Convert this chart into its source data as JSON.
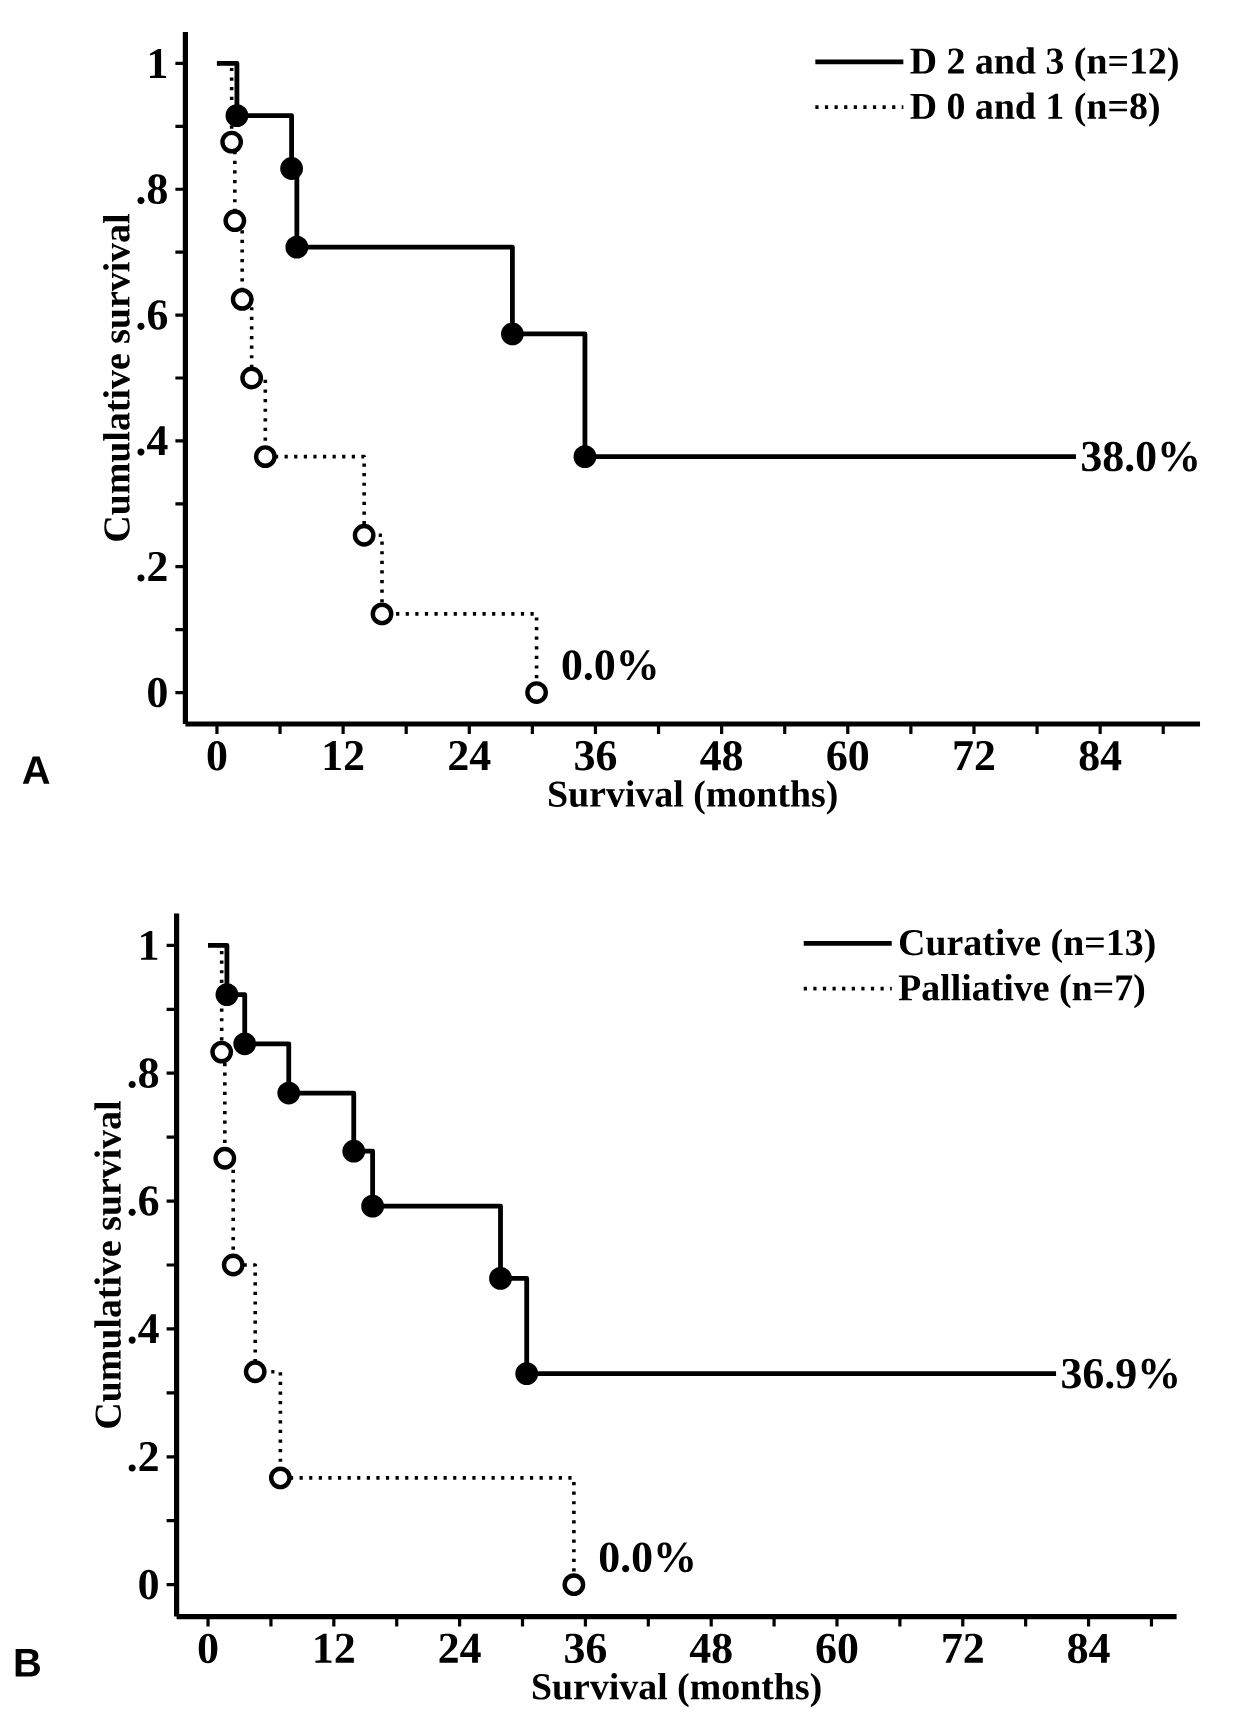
{
  "chart_data": [
    {
      "type": "step",
      "xlabel": "Survival (months)",
      "ylabel": "Cumulative survival",
      "series": [
        {
          "name": "D 2 and 3 (n=12)",
          "color": "#000000",
          "line_style": "solid",
          "marker": "circle",
          "x": [
            0,
            1.9,
            7.1,
            7.6,
            28.1,
            35,
            81.7
          ],
          "values": [
            1,
            0.917,
            0.833,
            0.708,
            0.57,
            0.375,
            0.375
          ]
        },
        {
          "name": "D 0 and 1 (n=8)",
          "color": "#000000",
          "line_style": "dotted",
          "marker": "circle",
          "x": [
            0,
            1.4,
            1.7,
            2.4,
            3.3,
            4.6,
            14.0,
            15.7,
            30.4
          ],
          "values": [
            1,
            0.875,
            0.75,
            0.625,
            0.5,
            0.375,
            0.25,
            0.125,
            0
          ]
        }
      ],
      "xlim": [
        -3,
        93.5
      ],
      "ylim": [
        -0.05,
        1.05
      ],
      "xticks": [
        0,
        {
          "value": 6,
          "label": null
        },
        12,
        {
          "value": 18,
          "label": null
        },
        24,
        {
          "value": 30,
          "label": null
        },
        36,
        {
          "value": 42,
          "label": null
        },
        48,
        {
          "value": 54,
          "label": null
        },
        60,
        {
          "value": 66,
          "label": null
        },
        72,
        {
          "value": 78,
          "label": null
        },
        84,
        {
          "value": 90,
          "label": null
        }
      ],
      "yticks": [
        0,
        {
          "value": 0.1,
          "label": null
        },
        {
          "value": 0.2,
          "label": ".2"
        },
        {
          "value": 0.3,
          "label": null
        },
        {
          "value": 0.4,
          "label": ".4"
        },
        {
          "value": 0.5,
          "label": null
        },
        {
          "value": 0.6,
          "label": ".6"
        },
        {
          "value": 0.7,
          "label": null
        },
        {
          "value": 0.8,
          "label": ".8"
        },
        {
          "value": 0.9,
          "label": null
        },
        1
      ],
      "legend": "top right",
      "grid": false,
      "annotations": [
        "A",
        {
          "text": "38.0%",
          "x": 81.7,
          "y": 0.375
        },
        {
          "text": "0.0%",
          "x": 30.4,
          "y": 0
        }
      ]
    },
    {
      "type": "step",
      "xlabel": "Survival (months)",
      "ylabel": "Cumulative survival",
      "series": [
        {
          "name": "Curative (n=13)",
          "color": "#000000",
          "line_style": "solid",
          "marker": "circle",
          "x": [
            0,
            1.8,
            3.5,
            7.7,
            13.9,
            15.7,
            27.9,
            30.4,
            80.9
          ],
          "values": [
            1,
            0.923,
            0.846,
            0.769,
            0.678,
            0.592,
            0.479,
            0.33,
            0.33
          ]
        },
        {
          "name": "Palliative (n=7)",
          "color": "#000000",
          "line_style": "dotted",
          "marker": "circle",
          "x": [
            0,
            1.3,
            1.6,
            2.4,
            4.5,
            6.9,
            34.9
          ],
          "values": [
            1,
            0.833,
            0.667,
            0.5,
            0.333,
            0.167,
            0
          ]
        }
      ],
      "xlim": [
        -3,
        92.4
      ],
      "ylim": [
        -0.05,
        1.05
      ],
      "xticks": [
        0,
        {
          "value": 6,
          "label": null
        },
        12,
        {
          "value": 18,
          "label": null
        },
        24,
        {
          "value": 30,
          "label": null
        },
        36,
        {
          "value": 42,
          "label": null
        },
        48,
        {
          "value": 54,
          "label": null
        },
        60,
        {
          "value": 66,
          "label": null
        },
        72,
        {
          "value": 78,
          "label": null
        },
        84,
        {
          "value": 90,
          "label": null
        }
      ],
      "yticks": [
        0,
        {
          "value": 0.1,
          "label": null
        },
        {
          "value": 0.2,
          "label": ".2"
        },
        {
          "value": 0.3,
          "label": null
        },
        {
          "value": 0.4,
          "label": ".4"
        },
        {
          "value": 0.5,
          "label": null
        },
        {
          "value": 0.6,
          "label": ".6"
        },
        {
          "value": 0.7,
          "label": null
        },
        {
          "value": 0.8,
          "label": ".8"
        },
        {
          "value": 0.9,
          "label": null
        },
        1
      ],
      "legend": "top right",
      "grid": false,
      "annotations": [
        "B",
        {
          "text": "36.9%",
          "x": 80.9,
          "y": 0.33
        },
        {
          "text": "0.0%",
          "x": 34.9,
          "y": 0
        }
      ]
    }
  ]
}
